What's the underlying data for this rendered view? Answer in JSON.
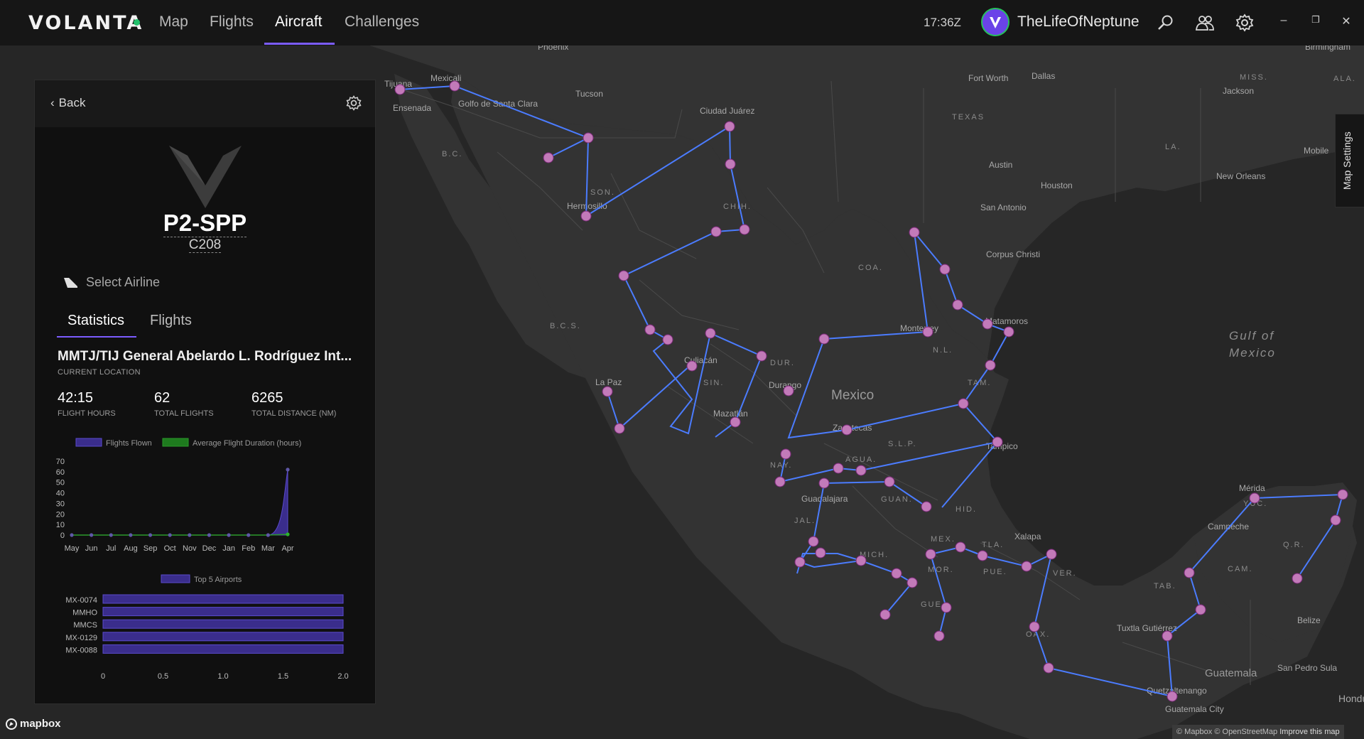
{
  "app": {
    "name": "VOLANTA",
    "status_color": "#21c16b",
    "accent": "#7b5cff"
  },
  "nav": {
    "items": [
      {
        "label": "Map"
      },
      {
        "label": "Flights"
      },
      {
        "label": "Aircraft",
        "active": true
      },
      {
        "label": "Challenges"
      }
    ]
  },
  "topbar": {
    "clock": "17:36Z",
    "username": "TheLifeOfNeptune",
    "icons": [
      "search-icon",
      "friends-icon",
      "settings-icon"
    ],
    "window_controls": [
      "minimize-icon",
      "restore-icon",
      "close-icon"
    ]
  },
  "panel": {
    "back_label": "Back",
    "registration": "P2-SPP",
    "aircraft_type": "C208",
    "select_airline_label": "Select Airline",
    "tabs": [
      {
        "label": "Statistics",
        "active": true
      },
      {
        "label": "Flights"
      }
    ],
    "location_name": "MMTJ/TIJ General Abelardo L. Rodríguez Int...",
    "location_caption": "CURRENT LOCATION",
    "stats": [
      {
        "value": "42:15",
        "label": "FLIGHT HOURS"
      },
      {
        "value": "62",
        "label": "TOTAL FLIGHTS"
      },
      {
        "value": "6265",
        "label": "TOTAL DISTANCE (NM)"
      }
    ]
  },
  "chart_data": [
    {
      "type": "area",
      "series": [
        {
          "name": "Flights Flown",
          "color": "#3a2d8c",
          "values": [
            0,
            0,
            0,
            0,
            0,
            0,
            0,
            0,
            0,
            0,
            0,
            62
          ]
        },
        {
          "name": "Average Flight Duration (hours)",
          "color": "#1e7a1e",
          "values": [
            0,
            0,
            0,
            0,
            0,
            0,
            0,
            0,
            0,
            0,
            0,
            0.68
          ]
        }
      ],
      "categories": [
        "May",
        "Jun",
        "Jul",
        "Aug",
        "Sep",
        "Oct",
        "Nov",
        "Dec",
        "Jan",
        "Feb",
        "Mar",
        "Apr"
      ],
      "y_ticks": [
        0,
        10,
        20,
        30,
        40,
        50,
        60,
        70
      ],
      "ylim": [
        0,
        70
      ],
      "legend": "top"
    },
    {
      "type": "bar",
      "orientation": "horizontal",
      "series": [
        {
          "name": "Top 5 Airports",
          "color": "#3a2d8c",
          "values": [
            2,
            2,
            2,
            2,
            2
          ]
        }
      ],
      "categories": [
        "MX-0074",
        "MMHO",
        "MMCS",
        "MX-0129",
        "MX-0088"
      ],
      "x_ticks": [
        "0",
        "0.5",
        "1.0",
        "1.5",
        "2.0"
      ],
      "xlim": [
        0,
        2
      ],
      "legend": "top"
    }
  ],
  "map": {
    "places": [
      "Phoenix",
      "Tijuana",
      "Mexicali",
      "Ensenada",
      "Golfo de Santa Clara",
      "Tucson",
      "Ciudad Juárez",
      "Fort Worth",
      "Dallas",
      "Birmingham",
      "Jackson",
      "MISS.",
      "ALA.",
      "TEXAS",
      "B.C.",
      "SON.",
      "CHIH.",
      "Hermosillo",
      "Austin",
      "Houston",
      "San Antonio",
      "Mobile",
      "New Orleans",
      "LA.",
      "Corpus Christi",
      "COA.",
      "B.C.S.",
      "La Paz",
      "Culiacán",
      "DUR.",
      "SIN.",
      "Durango",
      "Mazatlán",
      "Monterrey",
      "N.L.",
      "Matamoros",
      "TAM.",
      "Mexico",
      "Zacatecas",
      "S.L.P.",
      "Tampico",
      "NAY.",
      "AGUA.",
      "Guadalajara",
      "GUAN.",
      "HID.",
      "JAL.",
      "MICH.",
      "MEX.",
      "MOR.",
      "TLA.",
      "PUE.",
      "Xalapa",
      "VER.",
      "GUE.",
      "OAX.",
      "Mérida",
      "YUC.",
      "Campeche",
      "CAM.",
      "Q.R.",
      "TAB.",
      "Tuxtla Gutiérrez",
      "Belize",
      "Guatemala",
      "San Pedro Sula",
      "Quetzaltenango",
      "Guatemala City",
      "Honduras"
    ],
    "sea": [
      "Gulf of",
      "Mexico"
    ],
    "map_settings_label": "Map Settings",
    "mapbox_label": "mapbox",
    "attribution": "© Mapbox © OpenStreetMap",
    "improve_label": "Improve this map"
  }
}
